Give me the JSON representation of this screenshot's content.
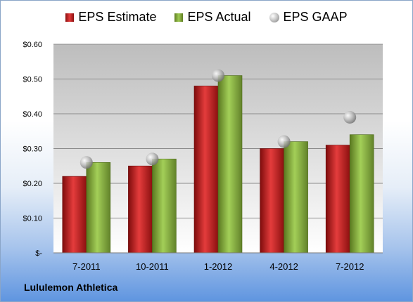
{
  "legend": {
    "estimate": "EPS Estimate",
    "actual": "EPS Actual",
    "gaap": "EPS GAAP"
  },
  "company": "Lululemon Athletica",
  "colors": {
    "estimate": "#cc2020",
    "actual": "#8ab43c",
    "gaap": "#a0a0a0"
  },
  "chart_data": {
    "type": "bar",
    "categories": [
      "7-2011",
      "10-2011",
      "1-2012",
      "4-2012",
      "7-2012"
    ],
    "series": [
      {
        "name": "EPS Estimate",
        "values": [
          0.22,
          0.25,
          0.48,
          0.3,
          0.31
        ]
      },
      {
        "name": "EPS Actual",
        "values": [
          0.26,
          0.27,
          0.51,
          0.32,
          0.34
        ]
      },
      {
        "name": "EPS GAAP",
        "type": "scatter",
        "values": [
          0.26,
          0.27,
          0.51,
          0.32,
          0.39
        ]
      }
    ],
    "y_ticks": [
      0,
      0.1,
      0.2,
      0.3,
      0.4,
      0.5,
      0.6
    ],
    "y_tick_labels": [
      "$-",
      "$0.10",
      "$0.20",
      "$0.30",
      "$0.40",
      "$0.50",
      "$0.60"
    ],
    "ylim": [
      0,
      0.6
    ],
    "grid": true,
    "legend_position": "top"
  }
}
